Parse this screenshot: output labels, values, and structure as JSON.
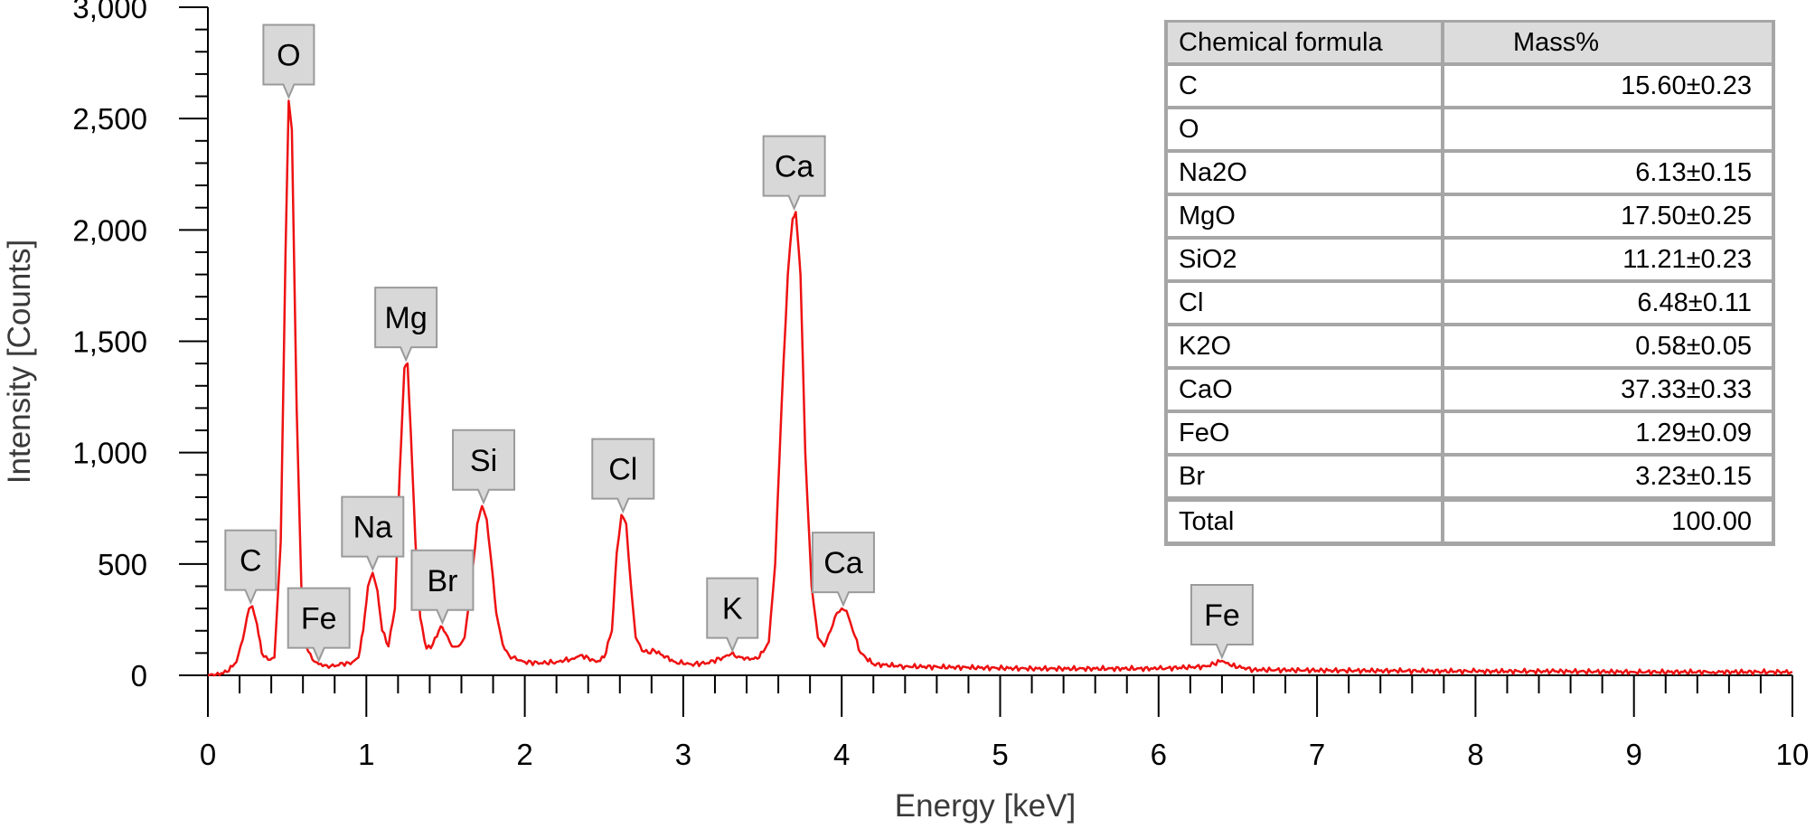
{
  "chart_data": {
    "type": "line",
    "title": "",
    "xlabel": "Energy [keV]",
    "ylabel": "Intensity [Counts]",
    "xlim": [
      0,
      10
    ],
    "ylim": [
      0,
      3000
    ],
    "x_ticks": [
      "0",
      "1",
      "2",
      "3",
      "4",
      "5",
      "6",
      "7",
      "8",
      "9",
      "10"
    ],
    "y_ticks": [
      "0",
      "500",
      "1,000",
      "1,500",
      "2,000",
      "2,500",
      "3,000"
    ],
    "grid": false,
    "legend": "none",
    "series": [
      {
        "color": "#ee1111",
        "points": [
          [
            0.0,
            0
          ],
          [
            0.05,
            2
          ],
          [
            0.12,
            15
          ],
          [
            0.18,
            60
          ],
          [
            0.22,
            160
          ],
          [
            0.26,
            300
          ],
          [
            0.28,
            310
          ],
          [
            0.31,
            230
          ],
          [
            0.34,
            100
          ],
          [
            0.38,
            70
          ],
          [
            0.42,
            80
          ],
          [
            0.46,
            600
          ],
          [
            0.49,
            1900
          ],
          [
            0.51,
            2580
          ],
          [
            0.53,
            2450
          ],
          [
            0.56,
            1200
          ],
          [
            0.59,
            400
          ],
          [
            0.62,
            130
          ],
          [
            0.66,
            70
          ],
          [
            0.7,
            50
          ],
          [
            0.75,
            45
          ],
          [
            0.8,
            40
          ],
          [
            0.85,
            55
          ],
          [
            0.9,
            50
          ],
          [
            0.95,
            80
          ],
          [
            0.98,
            200
          ],
          [
            1.01,
            400
          ],
          [
            1.04,
            460
          ],
          [
            1.07,
            380
          ],
          [
            1.1,
            200
          ],
          [
            1.14,
            130
          ],
          [
            1.18,
            300
          ],
          [
            1.21,
            900
          ],
          [
            1.24,
            1380
          ],
          [
            1.26,
            1400
          ],
          [
            1.28,
            1100
          ],
          [
            1.31,
            600
          ],
          [
            1.34,
            260
          ],
          [
            1.38,
            120
          ],
          [
            1.42,
            140
          ],
          [
            1.47,
            220
          ],
          [
            1.5,
            190
          ],
          [
            1.54,
            130
          ],
          [
            1.58,
            130
          ],
          [
            1.62,
            170
          ],
          [
            1.66,
            400
          ],
          [
            1.7,
            680
          ],
          [
            1.73,
            760
          ],
          [
            1.76,
            700
          ],
          [
            1.79,
            500
          ],
          [
            1.82,
            280
          ],
          [
            1.86,
            140
          ],
          [
            1.9,
            90
          ],
          [
            1.95,
            70
          ],
          [
            2.0,
            60
          ],
          [
            2.1,
            55
          ],
          [
            2.2,
            60
          ],
          [
            2.3,
            75
          ],
          [
            2.35,
            90
          ],
          [
            2.4,
            80
          ],
          [
            2.45,
            60
          ],
          [
            2.5,
            80
          ],
          [
            2.55,
            200
          ],
          [
            2.58,
            550
          ],
          [
            2.61,
            720
          ],
          [
            2.64,
            680
          ],
          [
            2.67,
            400
          ],
          [
            2.7,
            170
          ],
          [
            2.74,
            110
          ],
          [
            2.78,
            100
          ],
          [
            2.82,
            110
          ],
          [
            2.87,
            90
          ],
          [
            2.95,
            60
          ],
          [
            3.05,
            50
          ],
          [
            3.15,
            55
          ],
          [
            3.25,
            80
          ],
          [
            3.3,
            95
          ],
          [
            3.35,
            85
          ],
          [
            3.42,
            70
          ],
          [
            3.48,
            80
          ],
          [
            3.54,
            150
          ],
          [
            3.58,
            500
          ],
          [
            3.62,
            1200
          ],
          [
            3.66,
            1800
          ],
          [
            3.69,
            2050
          ],
          [
            3.71,
            2080
          ],
          [
            3.74,
            1800
          ],
          [
            3.77,
            1000
          ],
          [
            3.81,
            400
          ],
          [
            3.85,
            170
          ],
          [
            3.89,
            130
          ],
          [
            3.93,
            200
          ],
          [
            3.97,
            280
          ],
          [
            4.0,
            300
          ],
          [
            4.03,
            290
          ],
          [
            4.07,
            200
          ],
          [
            4.12,
            100
          ],
          [
            4.2,
            50
          ],
          [
            4.4,
            40
          ],
          [
            4.8,
            35
          ],
          [
            5.2,
            30
          ],
          [
            5.6,
            30
          ],
          [
            6.0,
            30
          ],
          [
            6.3,
            40
          ],
          [
            6.4,
            65
          ],
          [
            6.45,
            45
          ],
          [
            6.6,
            25
          ],
          [
            7.0,
            22
          ],
          [
            7.5,
            20
          ],
          [
            8.0,
            18
          ],
          [
            8.5,
            18
          ],
          [
            9.0,
            15
          ],
          [
            9.5,
            15
          ],
          [
            10.0,
            15
          ]
        ]
      }
    ],
    "annotations": [
      {
        "text": "C",
        "x": 0.27,
        "y": 310
      },
      {
        "text": "O",
        "x": 0.51,
        "y": 2580
      },
      {
        "text": "Fe",
        "x": 0.7,
        "y": 50
      },
      {
        "text": "Na",
        "x": 1.04,
        "y": 460
      },
      {
        "text": "Mg",
        "x": 1.25,
        "y": 1400
      },
      {
        "text": "Br",
        "x": 1.48,
        "y": 220
      },
      {
        "text": "Si",
        "x": 1.74,
        "y": 760
      },
      {
        "text": "Cl",
        "x": 2.62,
        "y": 720
      },
      {
        "text": "K",
        "x": 3.31,
        "y": 95
      },
      {
        "text": "Ca",
        "x": 3.7,
        "y": 2080
      },
      {
        "text": "Ca",
        "x": 4.01,
        "y": 300
      },
      {
        "text": "Fe",
        "x": 6.4,
        "y": 65
      }
    ]
  },
  "table": {
    "headers": [
      "Chemical formula",
      "Mass%"
    ],
    "rows": [
      [
        "C",
        "15.60±0.23"
      ],
      [
        "O",
        ""
      ],
      [
        "Na2O",
        "6.13±0.15"
      ],
      [
        "MgO",
        "17.50±0.25"
      ],
      [
        "SiO2",
        "11.21±0.23"
      ],
      [
        "Cl",
        "6.48±0.11"
      ],
      [
        "K2O",
        "0.58±0.05"
      ],
      [
        "CaO",
        "37.33±0.33"
      ],
      [
        "FeO",
        "1.29±0.09"
      ],
      [
        "Br",
        "3.23±0.15"
      ]
    ],
    "total": [
      "Total",
      "100.00"
    ]
  }
}
